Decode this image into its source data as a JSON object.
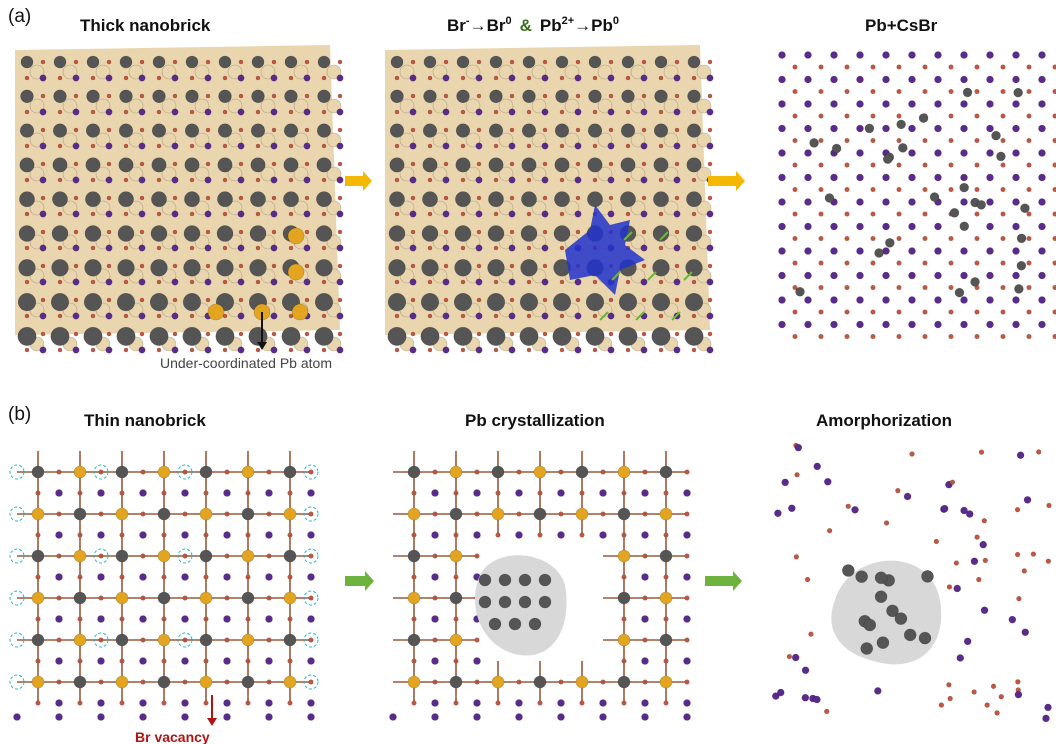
{
  "panel_a": {
    "label": "(a)",
    "titles": [
      "Thick nanobrick",
      "Pb+CsBr"
    ],
    "reaction": {
      "br": "Br",
      "br_charge": "-",
      "br_arrow": "→Br",
      "br_zero": "0",
      "and": "&",
      "pb": "Pb",
      "pb_charge": "2+",
      "pb_arrow": "→Pb",
      "pb_zero": "0"
    },
    "annotation": "Under-coordinated Pb atom"
  },
  "panel_b": {
    "label": "(b)",
    "titles": [
      "Thin nanobrick",
      "Pb crystallization",
      "Amorphorization"
    ],
    "annotation": "Br vacancy"
  }
}
